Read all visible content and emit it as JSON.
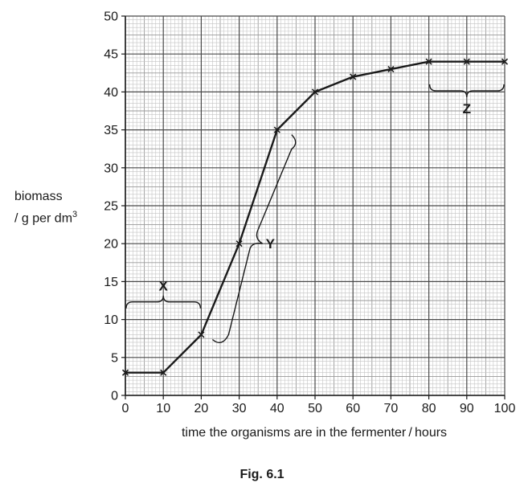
{
  "chart_data": {
    "type": "line",
    "caption": "Fig. 6.1",
    "xlabel": "time the organisms are in the fermenter / hours",
    "ylabel_line1": "biomass",
    "ylabel_line2": "/ g per dm",
    "ylabel_sup": "3",
    "xlim": [
      0,
      100
    ],
    "ylim": [
      0,
      50
    ],
    "xticks": [
      0,
      10,
      20,
      30,
      40,
      50,
      60,
      70,
      80,
      90,
      100
    ],
    "yticks": [
      0,
      5,
      10,
      15,
      20,
      25,
      30,
      35,
      40,
      45,
      50
    ],
    "grid": true,
    "series": [
      {
        "x": [
          0,
          10,
          20,
          30,
          40,
          50,
          60,
          70,
          80,
          90,
          100
        ],
        "y": [
          3,
          3,
          8,
          20,
          35,
          40,
          42,
          43,
          44,
          44,
          44
        ],
        "marker": "x",
        "color": "#1a1a1a"
      }
    ],
    "annotations": [
      {
        "label": "X",
        "x_range": [
          0,
          20
        ],
        "y": 12
      },
      {
        "label": "Y",
        "x_range": [
          20,
          40
        ],
        "y_range": [
          8,
          35
        ]
      },
      {
        "label": "Z",
        "x_range": [
          80,
          100
        ],
        "y": 41
      }
    ]
  }
}
